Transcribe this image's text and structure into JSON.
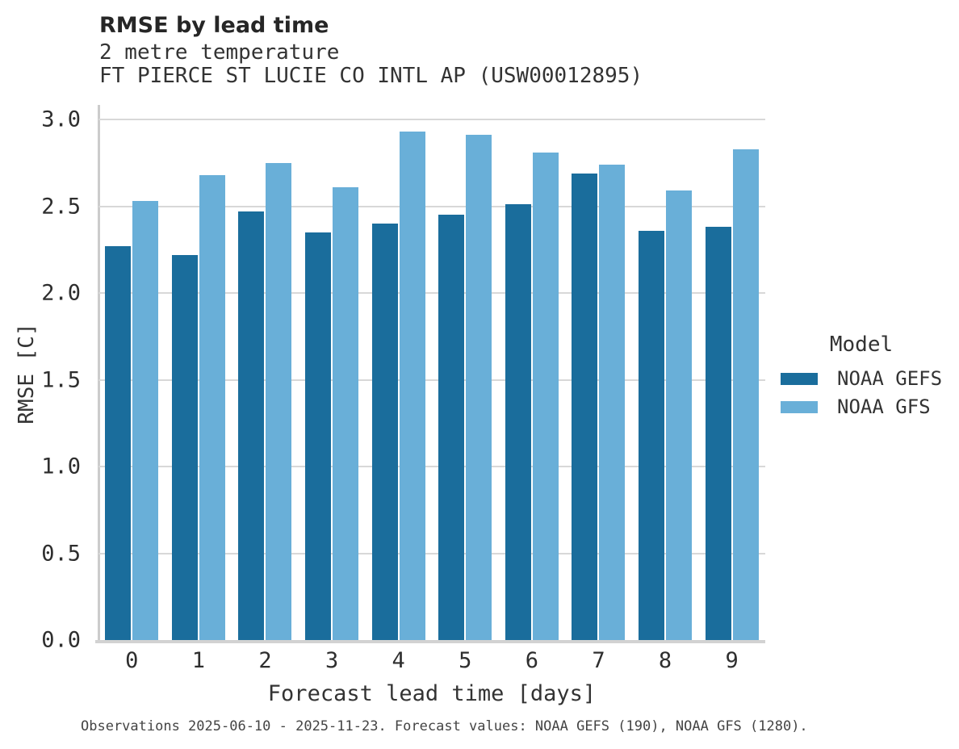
{
  "header": {
    "title": "RMSE by lead time",
    "subtitle_lines": [
      "2 metre temperature",
      "FT PIERCE ST LUCIE CO INTL AP (USW00012895)"
    ]
  },
  "chart_data": {
    "type": "bar",
    "title": "RMSE by lead time",
    "subtitle": "2 metre temperature — FT PIERCE ST LUCIE CO INTL AP (USW00012895)",
    "xlabel": "Forecast lead time [days]",
    "ylabel": "RMSE [C]",
    "categories": [
      "0",
      "1",
      "2",
      "3",
      "4",
      "5",
      "6",
      "7",
      "8",
      "9"
    ],
    "series": [
      {
        "name": "NOAA GEFS",
        "color": "#1a6d9c",
        "values": [
          2.27,
          2.22,
          2.47,
          2.35,
          2.4,
          2.45,
          2.51,
          2.69,
          2.36,
          2.38
        ]
      },
      {
        "name": "NOAA GFS",
        "color": "#69afd8",
        "values": [
          2.53,
          2.68,
          2.75,
          2.61,
          2.93,
          2.91,
          2.81,
          2.74,
          2.59,
          2.83
        ]
      }
    ],
    "ylim": [
      0,
      3.07
    ],
    "yticks": [
      0.0,
      0.5,
      1.0,
      1.5,
      2.0,
      2.5,
      3.0
    ],
    "ytick_labels": [
      "0.0",
      "0.5",
      "1.0",
      "1.5",
      "2.0",
      "2.5",
      "3.0"
    ],
    "grid": true,
    "legend_title": "Model",
    "legend_position": "right"
  },
  "footer": {
    "text": "Observations 2025-06-10 - 2025-11-23. Forecast values: NOAA GEFS (190), NOAA GFS (1280)."
  },
  "colors": {
    "series_dark": "#1a6d9c",
    "series_light": "#69afd8",
    "gridline": "#d8d8d8",
    "spine": "#cccccc",
    "text": "#333333",
    "footer_text": "#444444",
    "background": "#ffffff"
  }
}
